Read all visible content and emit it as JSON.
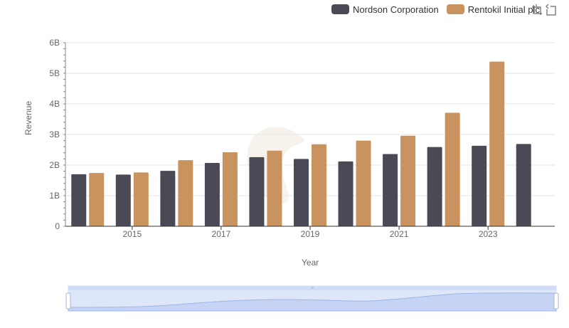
{
  "legend": {
    "items": [
      {
        "label": "Nordson Corporation",
        "color": "#4a4a56"
      },
      {
        "label": "Rentokil Initial plc",
        "color": "#c8935f"
      }
    ]
  },
  "toolbox": {
    "items": [
      {
        "name": "zoom-icon"
      },
      {
        "name": "restore-icon"
      }
    ]
  },
  "chart_data": {
    "type": "bar",
    "title": "",
    "xlabel": "Year",
    "ylabel": "Revenue",
    "categories": [
      "2014",
      "2015",
      "2016",
      "2017",
      "2018",
      "2019",
      "2020",
      "2021",
      "2022",
      "2023",
      "2024"
    ],
    "x_tick_labels": [
      "2015",
      "2017",
      "2019",
      "2021",
      "2023"
    ],
    "y_tick_labels": [
      "0",
      "1B",
      "2B",
      "3B",
      "4B",
      "5B",
      "6B"
    ],
    "ylim": [
      0,
      6000000000
    ],
    "grid": true,
    "legend_position": "top-right",
    "series": [
      {
        "name": "Nordson Corporation",
        "color": "#4a4a56",
        "values": [
          1700000000,
          1690000000,
          1810000000,
          2070000000,
          2260000000,
          2200000000,
          2120000000,
          2360000000,
          2590000000,
          2630000000,
          2690000000
        ]
      },
      {
        "name": "Rentokil Initial plc",
        "color": "#c8935f",
        "values": [
          1740000000,
          1760000000,
          2160000000,
          2420000000,
          2470000000,
          2680000000,
          2800000000,
          2960000000,
          3710000000,
          5380000000,
          null
        ]
      }
    ]
  }
}
